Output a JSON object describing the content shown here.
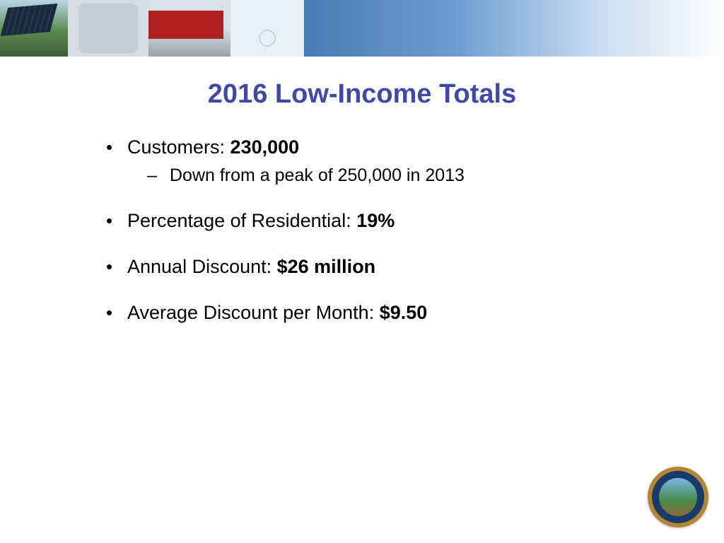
{
  "title": "2016 Low-Income Totals",
  "colors": {
    "title": "#3f4aa8",
    "text": "#000000",
    "background": "#ffffff"
  },
  "fontsize": {
    "title": 38,
    "bullet": 27,
    "sub": 25
  },
  "bullets": [
    {
      "label": "Customers: ",
      "value": "230,000",
      "sub": [
        {
          "text": "Down from a peak of 250,000 in 2013"
        }
      ]
    },
    {
      "label": "Percentage of Residential: ",
      "value": "19%"
    },
    {
      "label": "Annual Discount: ",
      "value": "$26 million"
    },
    {
      "label": "Average Discount per Month: ",
      "value": "$9.50"
    }
  ],
  "banner": {
    "tiles": [
      "solar-panels",
      "phone-keypad",
      "red-train",
      "water-drop"
    ],
    "gradient_colors": [
      "#4a7bb5",
      "#6b9bd0",
      "#c8dcf0",
      "#ffffff"
    ]
  },
  "seal": {
    "name": "California Public Utilities Commission Seal",
    "outer_color": "#c89a4a",
    "ring_color": "#1a3a6a"
  }
}
